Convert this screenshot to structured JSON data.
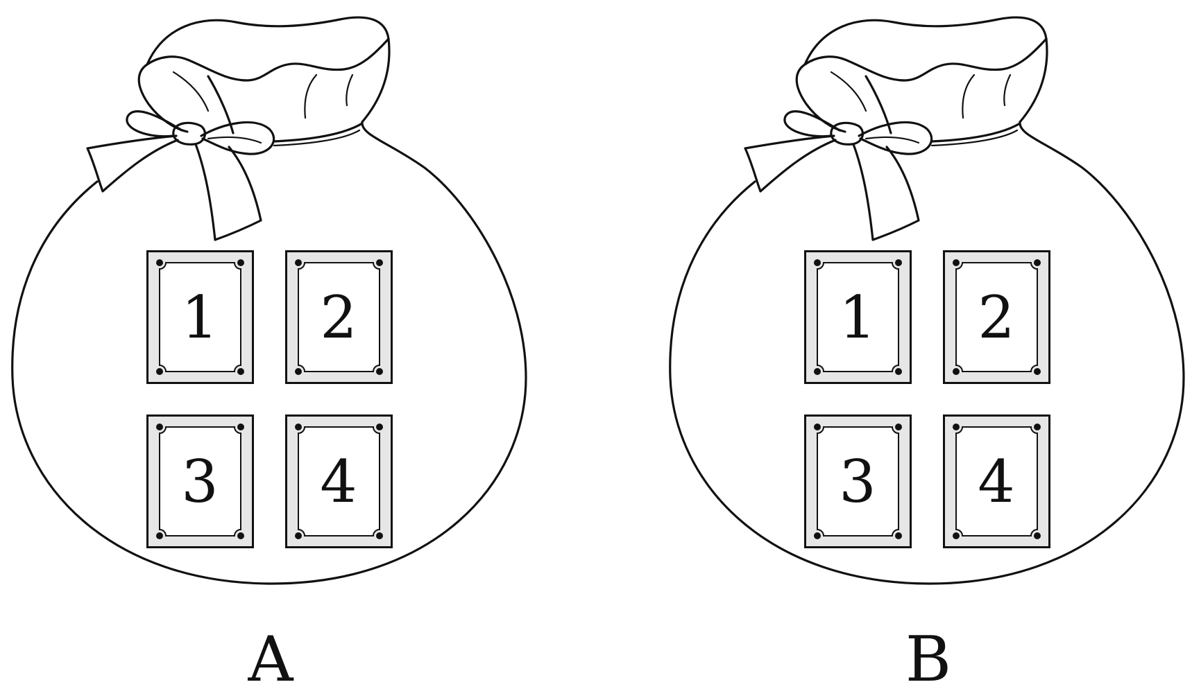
{
  "colors": {
    "stroke": "#111111",
    "card_frame": "#e6e6e6",
    "background": "#ffffff"
  },
  "bags": [
    {
      "label": "A",
      "cards": [
        "1",
        "2",
        "3",
        "4"
      ]
    },
    {
      "label": "B",
      "cards": [
        "1",
        "2",
        "3",
        "4"
      ]
    }
  ]
}
